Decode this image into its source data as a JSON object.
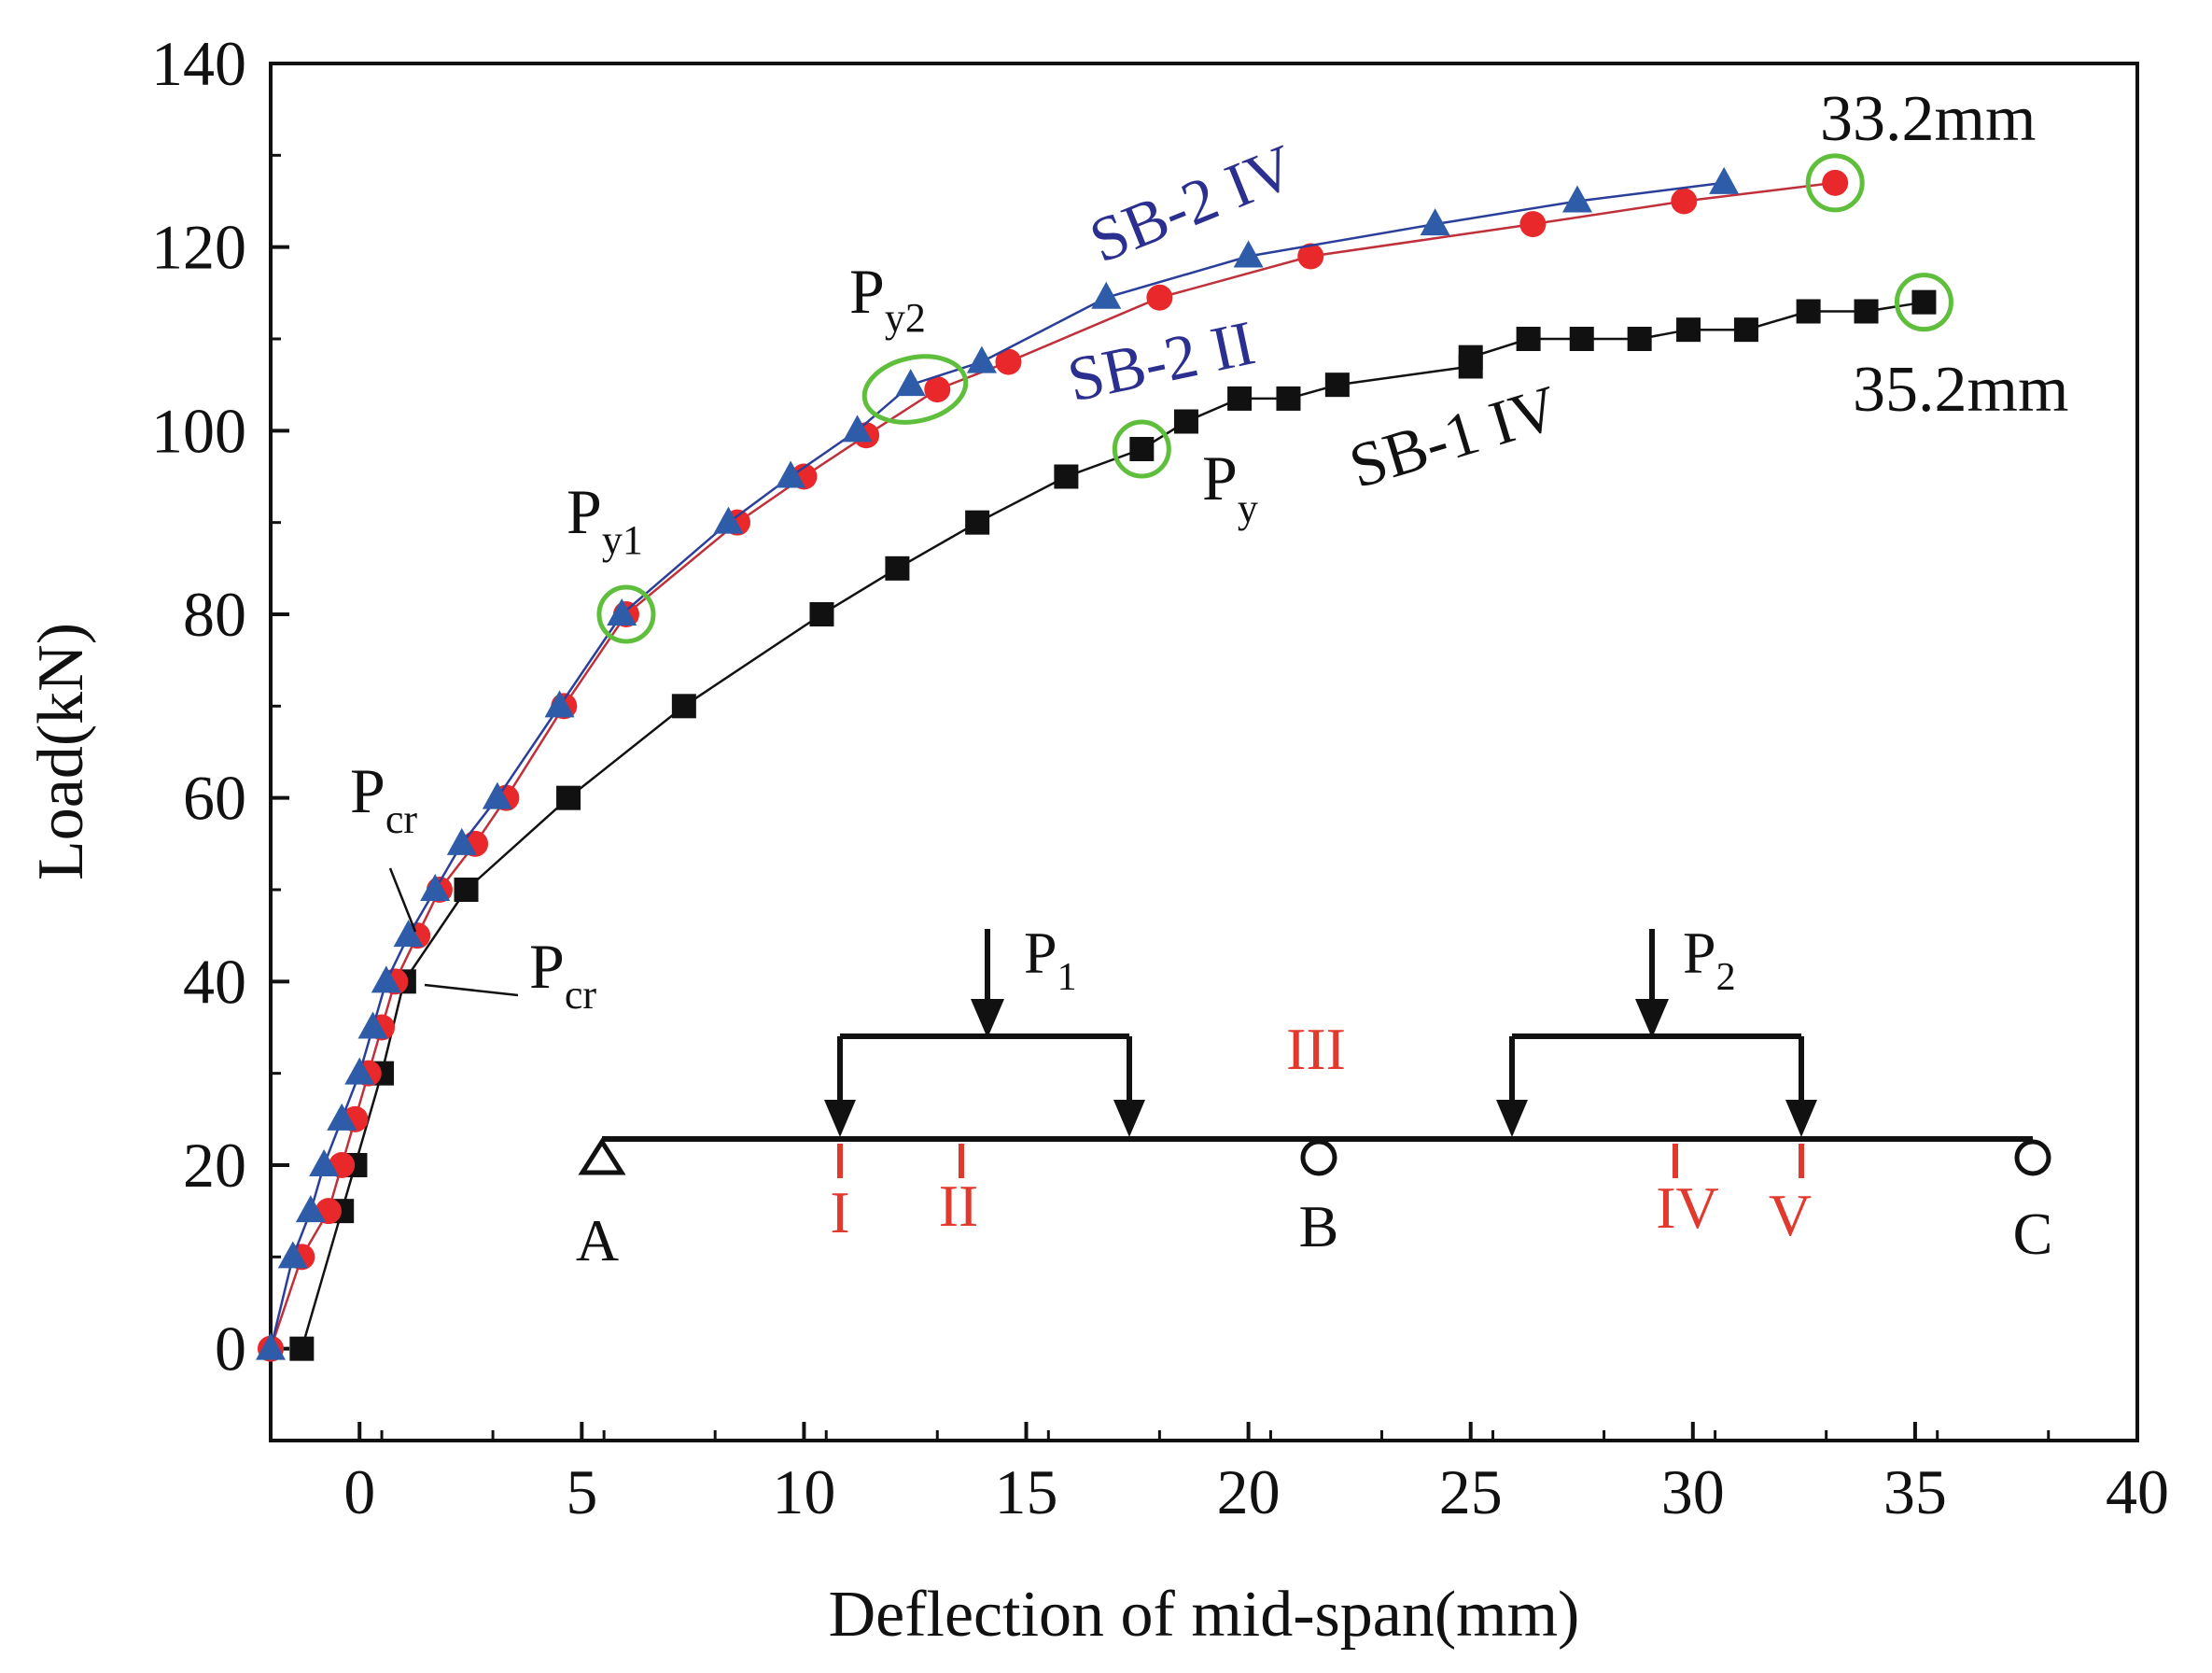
{
  "chart_data": {
    "type": "line",
    "title": "",
    "xlabel": "Deflection of mid-span(mm)",
    "ylabel": "Load(kN)",
    "xlim": [
      -2,
      40
    ],
    "ylim": [
      -10,
      140
    ],
    "x_ticks": [
      0,
      5,
      10,
      15,
      20,
      25,
      30,
      35,
      40
    ],
    "y_ticks": [
      0,
      20,
      40,
      60,
      80,
      100,
      120,
      140
    ],
    "grid": false,
    "series": [
      {
        "name": "SB-1 IV",
        "marker": "square",
        "color": "#111111",
        "line_color": "#111111",
        "x": [
          -1.3,
          -0.4,
          -0.1,
          0.5,
          1.0,
          2.4,
          4.7,
          7.3,
          10.4,
          12.1,
          13.9,
          15.9,
          17.6,
          18.6,
          19.8,
          20.9,
          22.0,
          25.0,
          25.0,
          26.3,
          27.5,
          28.8,
          29.9,
          31.2,
          32.6,
          33.9,
          35.2
        ],
        "y": [
          0,
          15,
          20,
          30,
          40,
          50,
          60,
          70,
          80,
          85,
          90,
          95,
          98,
          101,
          103.5,
          103.5,
          105,
          107,
          108,
          110,
          110,
          110,
          111,
          111,
          113,
          113,
          114
        ]
      },
      {
        "name": "SB-2 II",
        "marker": "circle",
        "color": "#e8282b",
        "line_color": "#c0303a",
        "x": [
          -2.0,
          -1.3,
          -0.7,
          -0.4,
          -0.1,
          0.2,
          0.5,
          0.8,
          1.3,
          1.8,
          2.6,
          3.3,
          4.6,
          6.0,
          8.5,
          10.0,
          11.4,
          13.0,
          14.6,
          18.0,
          21.4,
          26.4,
          29.8,
          33.2
        ],
        "y": [
          0,
          10,
          15,
          20,
          25,
          30,
          35,
          40,
          45,
          50,
          55,
          60,
          70,
          80,
          90,
          95,
          99.5,
          104.5,
          107.5,
          114.5,
          119,
          122.5,
          125,
          127
        ]
      },
      {
        "name": "SB-2 IV",
        "marker": "triangle",
        "color": "#2e5ca8",
        "line_color": "#2a3f9a",
        "x": [
          -2.0,
          -1.5,
          -1.1,
          -0.8,
          -0.4,
          0.0,
          0.3,
          0.6,
          1.1,
          1.7,
          2.3,
          3.1,
          4.5,
          5.9,
          8.3,
          9.7,
          11.2,
          12.4,
          14.0,
          16.8,
          20.0,
          24.2,
          27.4,
          30.7
        ],
        "y": [
          0,
          10,
          15,
          20,
          25,
          30,
          35,
          40,
          45,
          50,
          55,
          60,
          70,
          80,
          90,
          95,
          100,
          105,
          107.5,
          114.5,
          119,
          122.5,
          125,
          127
        ]
      }
    ],
    "annotations": {
      "circled_points": [
        {
          "x": 33.2,
          "y": 127
        },
        {
          "x": 35.2,
          "y": 114
        },
        {
          "x": 17.6,
          "y": 98
        },
        {
          "x": 6.0,
          "y": 80
        }
      ],
      "py2_ellipse": {
        "x": 12.5,
        "y": 104.5
      },
      "series_labels": {
        "sb2_iv": "SB-2 IV",
        "sb2_ii": "SB-2 II",
        "sb1_iv": "SB-1 IV"
      },
      "value_labels": {
        "sb2_max": "33.2mm",
        "sb1_max": "35.2mm"
      },
      "point_labels": {
        "py2_main": "P",
        "py2_sub": "y2",
        "py1_main": "P",
        "py1_sub": "y1",
        "py_main": "P",
        "py_sub": "y",
        "pcr1_main": "P",
        "pcr1_sub": "cr",
        "pcr2_main": "P",
        "pcr2_sub": "cr"
      }
    },
    "inset_beam": {
      "load1_main": "P",
      "load1_sub": "1",
      "load2_main": "P",
      "load2_sub": "2",
      "supports": [
        "A",
        "B",
        "C"
      ],
      "sections": [
        "I",
        "II",
        "III",
        "IV",
        "V"
      ]
    },
    "colors": {
      "sb1": "#111111",
      "sb2_ii": "#e8282b",
      "sb2_iv": "#2e5ca8",
      "circle": "#5fbf3c",
      "section": "#e03a2e",
      "label_blue": "#2b2f8f"
    }
  }
}
